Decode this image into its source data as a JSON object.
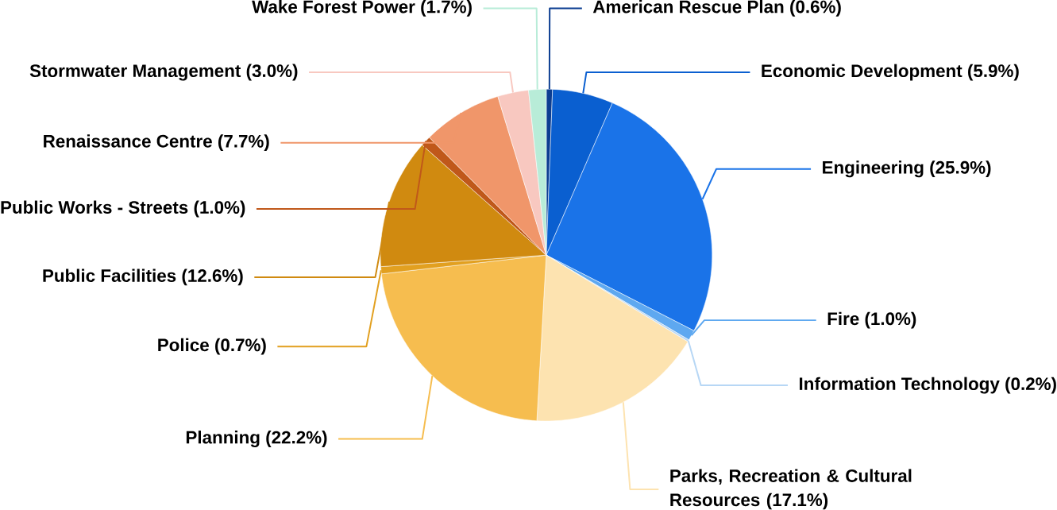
{
  "chart_data": {
    "type": "pie",
    "categories": [
      "American Rescue Plan (0.6%)",
      "Economic Development (5.9%)",
      "Engineering (25.9%)",
      "Fire (1.0%)",
      "Information Technology (0.2%)",
      "Parks, Recreation & Cultural Resources (17.1%)",
      "Planning (22.2%)",
      "Police (0.7%)",
      "Public Facilities (12.6%)",
      "Public Works - Streets (1.0%)",
      "Renaissance Centre (7.7%)",
      "Stormwater Management (3.0%)",
      "Wake Forest Power (1.7%)"
    ],
    "values": [
      0.6,
      5.9,
      25.9,
      1.0,
      0.2,
      17.1,
      22.2,
      0.7,
      12.6,
      1.0,
      7.7,
      3.0,
      1.7
    ],
    "colors": [
      "#0b3d91",
      "#0a5fd0",
      "#1a73e8",
      "#5ea8f0",
      "#b7d7f5",
      "#fde3b0",
      "#f6bd4f",
      "#e2a020",
      "#d08a10",
      "#c0581a",
      "#f0966a",
      "#f8c8c0",
      "#b8ecd8"
    ]
  }
}
